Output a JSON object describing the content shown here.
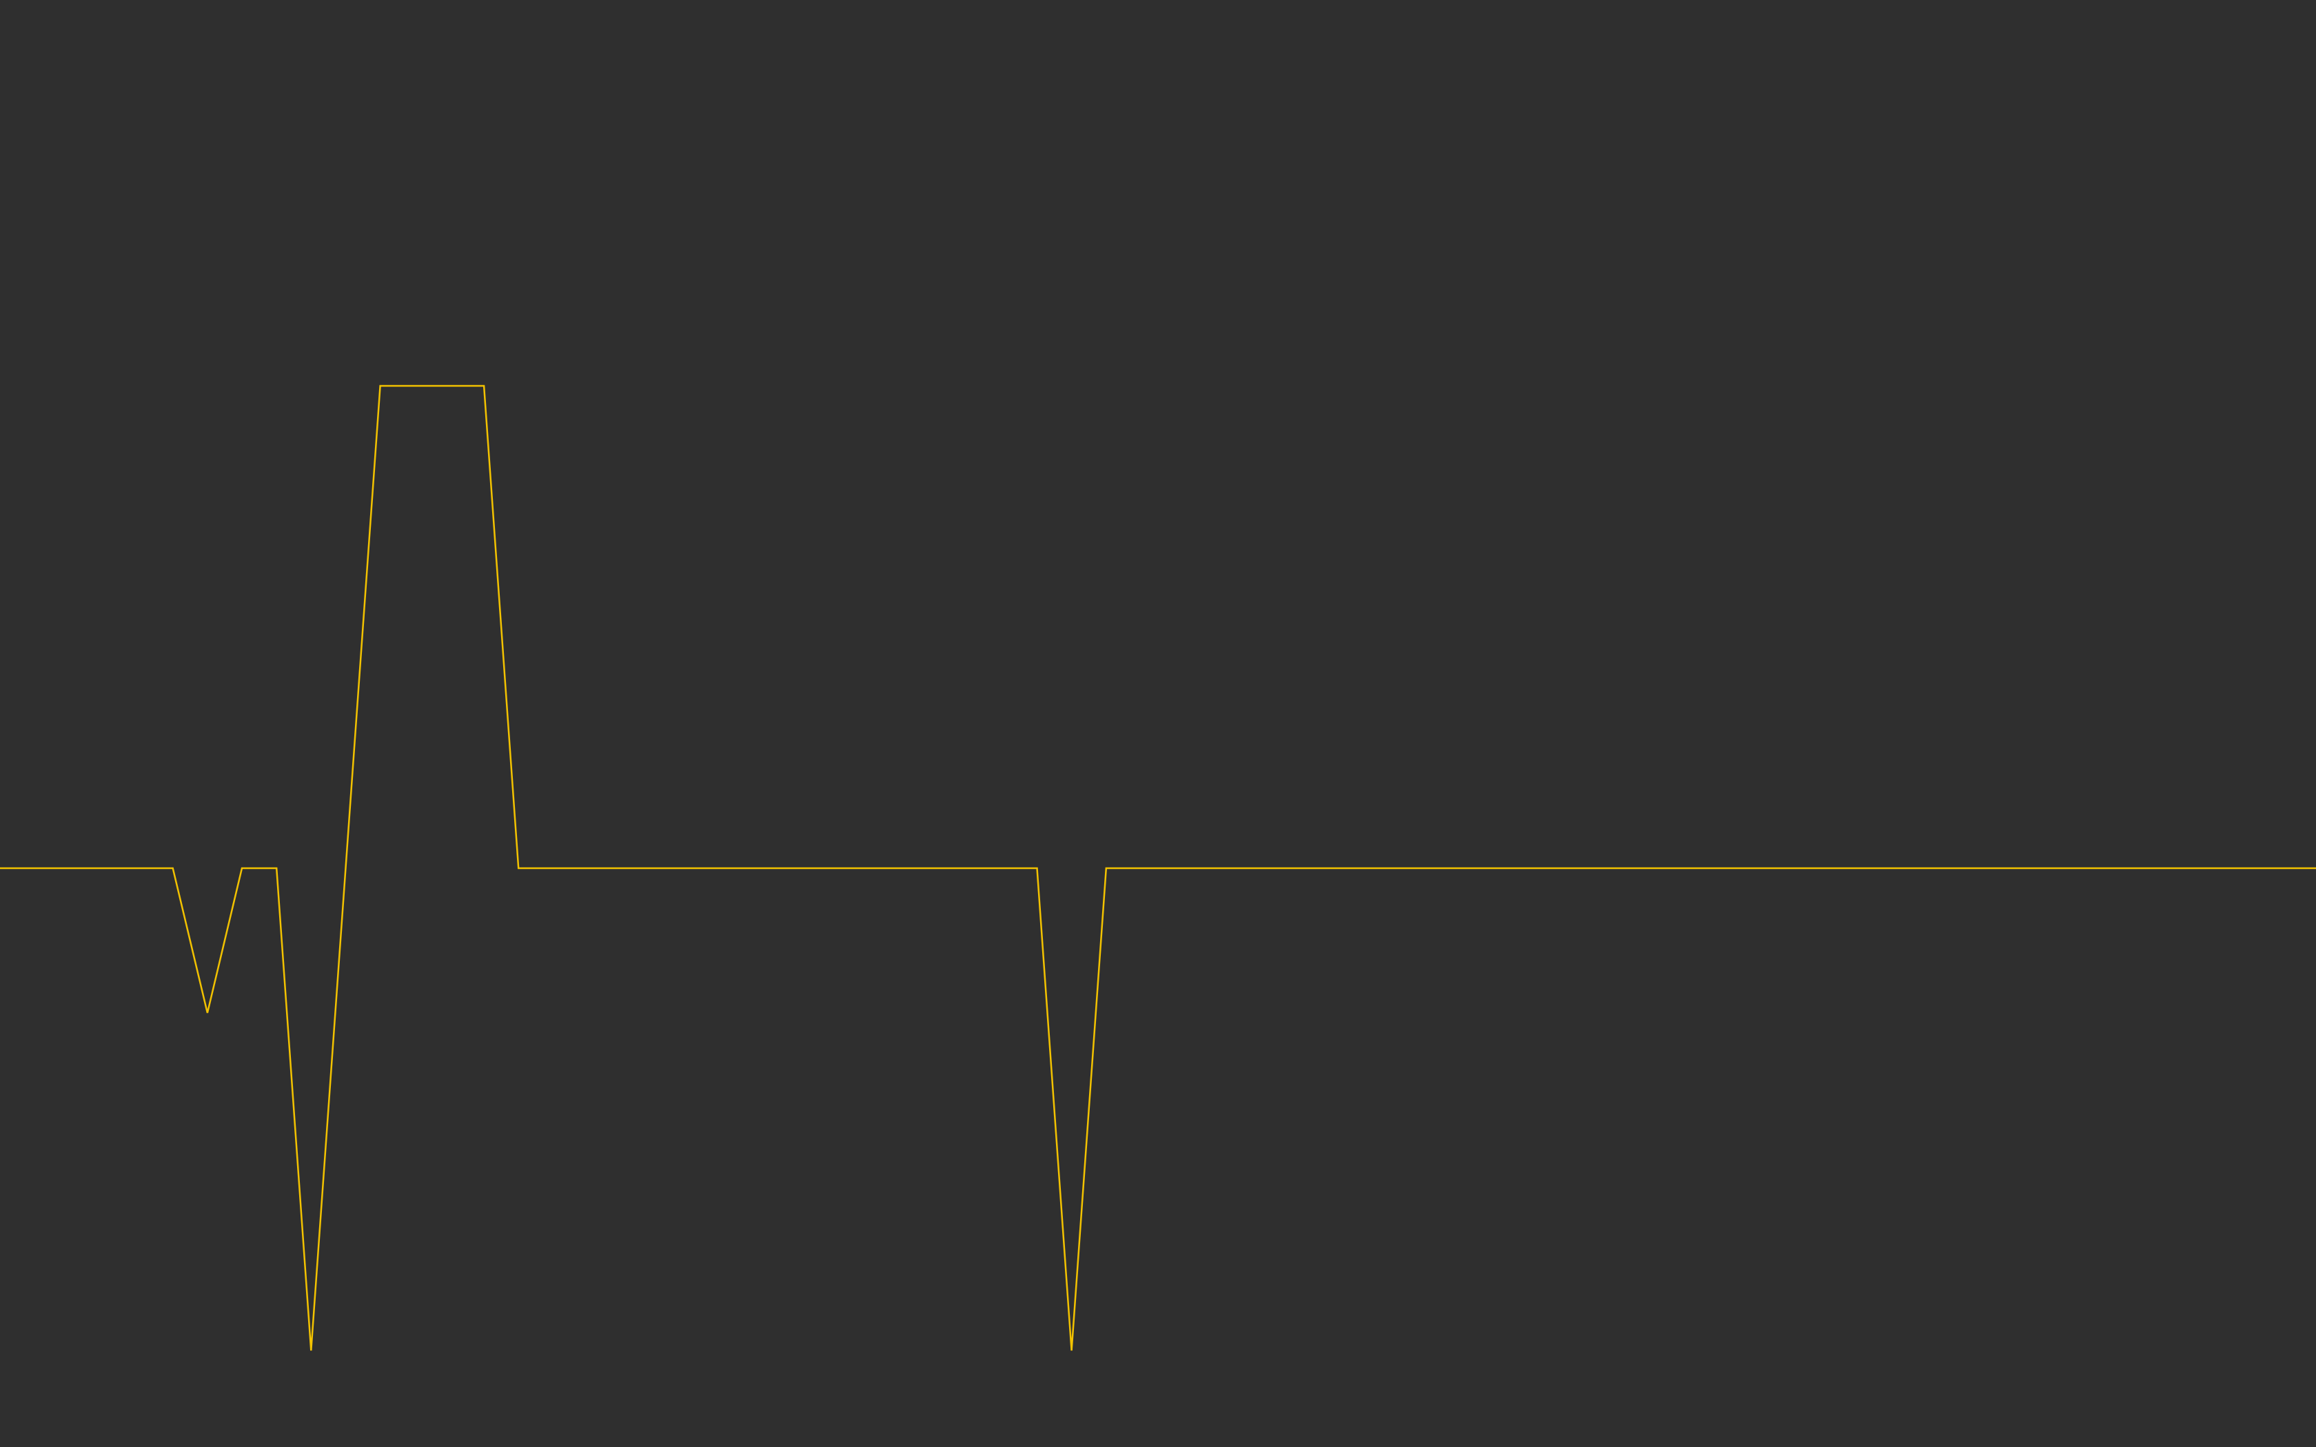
{
  "colors": {
    "background": "#2f2f2f",
    "trace": "#f2c200"
  },
  "chart_data": {
    "type": "line",
    "title": "",
    "xlabel": "",
    "ylabel": "",
    "grid": false,
    "legend": "none",
    "xlim": [
      0,
      67
    ],
    "ylim": [
      -1.2,
      1.8
    ],
    "series": [
      {
        "values": [
          [
            0,
            0
          ],
          [
            5,
            0
          ],
          [
            6,
            -0.3
          ],
          [
            7,
            0
          ],
          [
            8,
            0
          ],
          [
            9,
            -1
          ],
          [
            11,
            1
          ],
          [
            14,
            1
          ],
          [
            15,
            0
          ],
          [
            30,
            0
          ],
          [
            31,
            -1
          ],
          [
            32,
            0
          ],
          [
            67,
            0
          ]
        ]
      }
    ]
  }
}
